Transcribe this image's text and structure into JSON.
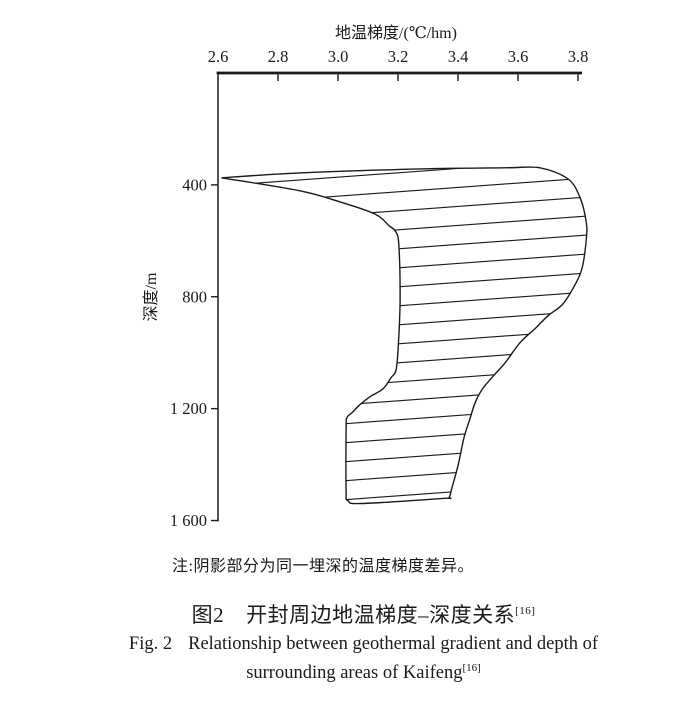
{
  "colors": {
    "ink": "#1a1a1a",
    "background": "#ffffff"
  },
  "figure": {
    "note": "注:阴影部分为同一埋深的温度梯度差异。",
    "caption_zh": {
      "prefix": "图2",
      "title": "开封周边地温梯度–深度关系",
      "ref": "[16]"
    },
    "caption_en": {
      "prefix": "Fig. 2",
      "line1": "Relationship between geothermal gradient and depth of",
      "line2": "surrounding areas of Kaifeng",
      "ref": "[16]"
    }
  },
  "chart_data": {
    "type": "area",
    "title": "",
    "xlabel": "地温梯度/(℃/hm)",
    "ylabel": "深度/m",
    "xlim": [
      2.6,
      3.8
    ],
    "ylim_depth": [
      0,
      1600
    ],
    "x_axis_position": "top",
    "y_axis_direction": "depth-increases-downward",
    "grid": false,
    "legend": "none",
    "fill_style": "hatched-lines",
    "x_ticks": {
      "values": [
        2.6,
        2.8,
        3.0,
        3.2,
        3.4,
        3.6,
        3.8
      ],
      "labels": [
        "2.6",
        "2.8",
        "3.0",
        "3.2",
        "3.4",
        "3.6",
        "3.8"
      ]
    },
    "y_ticks": {
      "values": [
        400,
        800,
        1200,
        1600
      ],
      "labels": [
        "400",
        "800",
        "1 200",
        "1 600"
      ]
    },
    "series": [
      {
        "name": "min-gradient-boundary",
        "points_gradient_depth": [
          [
            2.61,
            375
          ],
          [
            2.87,
            421
          ],
          [
            3.01,
            461
          ],
          [
            3.12,
            504
          ],
          [
            3.17,
            546
          ],
          [
            3.19,
            568
          ],
          [
            3.2,
            618
          ],
          [
            3.21,
            815
          ],
          [
            3.2,
            993
          ],
          [
            3.19,
            1064
          ],
          [
            3.15,
            1129
          ],
          [
            3.07,
            1186
          ],
          [
            3.03,
            1232
          ],
          [
            3.03,
            1493
          ],
          [
            3.03,
            1529
          ]
        ]
      },
      {
        "name": "max-gradient-boundary",
        "points_gradient_depth": [
          [
            2.61,
            375
          ],
          [
            2.87,
            357
          ],
          [
            3.27,
            343
          ],
          [
            3.56,
            339
          ],
          [
            3.67,
            339
          ],
          [
            3.77,
            379
          ],
          [
            3.81,
            446
          ],
          [
            3.83,
            529
          ],
          [
            3.83,
            590
          ],
          [
            3.81,
            700
          ],
          [
            3.78,
            771
          ],
          [
            3.75,
            829
          ],
          [
            3.7,
            868
          ],
          [
            3.66,
            914
          ],
          [
            3.61,
            964
          ],
          [
            3.56,
            1036
          ],
          [
            3.51,
            1089
          ],
          [
            3.48,
            1132
          ],
          [
            3.46,
            1179
          ],
          [
            3.44,
            1236
          ],
          [
            3.42,
            1304
          ],
          [
            3.4,
            1404
          ],
          [
            3.38,
            1482
          ],
          [
            3.37,
            1518
          ],
          [
            3.35,
            1521
          ],
          [
            3.08,
            1539
          ]
        ]
      }
    ],
    "envelope_outline": [
      [
        2.613,
        375
      ],
      [
        2.873,
        357
      ],
      [
        3.273,
        343
      ],
      [
        3.557,
        339
      ],
      [
        3.673,
        339
      ],
      [
        3.767,
        379
      ],
      [
        3.807,
        446
      ],
      [
        3.827,
        529
      ],
      [
        3.828,
        590
      ],
      [
        3.813,
        700
      ],
      [
        3.783,
        771
      ],
      [
        3.747,
        829
      ],
      [
        3.7,
        868
      ],
      [
        3.657,
        914
      ],
      [
        3.607,
        964
      ],
      [
        3.557,
        1036
      ],
      [
        3.513,
        1089
      ],
      [
        3.48,
        1132
      ],
      [
        3.457,
        1179
      ],
      [
        3.44,
        1236
      ],
      [
        3.42,
        1304
      ],
      [
        3.4,
        1404
      ],
      [
        3.38,
        1482
      ],
      [
        3.37,
        1518
      ],
      [
        3.35,
        1521
      ],
      [
        3.08,
        1539
      ],
      [
        3.033,
        1529
      ],
      [
        3.027,
        1493
      ],
      [
        3.027,
        1271
      ],
      [
        3.03,
        1232
      ],
      [
        3.047,
        1214
      ],
      [
        3.073,
        1186
      ],
      [
        3.107,
        1157
      ],
      [
        3.15,
        1129
      ],
      [
        3.177,
        1089
      ],
      [
        3.193,
        1064
      ],
      [
        3.2,
        993
      ],
      [
        3.207,
        815
      ],
      [
        3.203,
        618
      ],
      [
        3.193,
        568
      ],
      [
        3.17,
        546
      ],
      [
        3.123,
        504
      ],
      [
        3.007,
        461
      ],
      [
        2.873,
        421
      ]
    ]
  }
}
